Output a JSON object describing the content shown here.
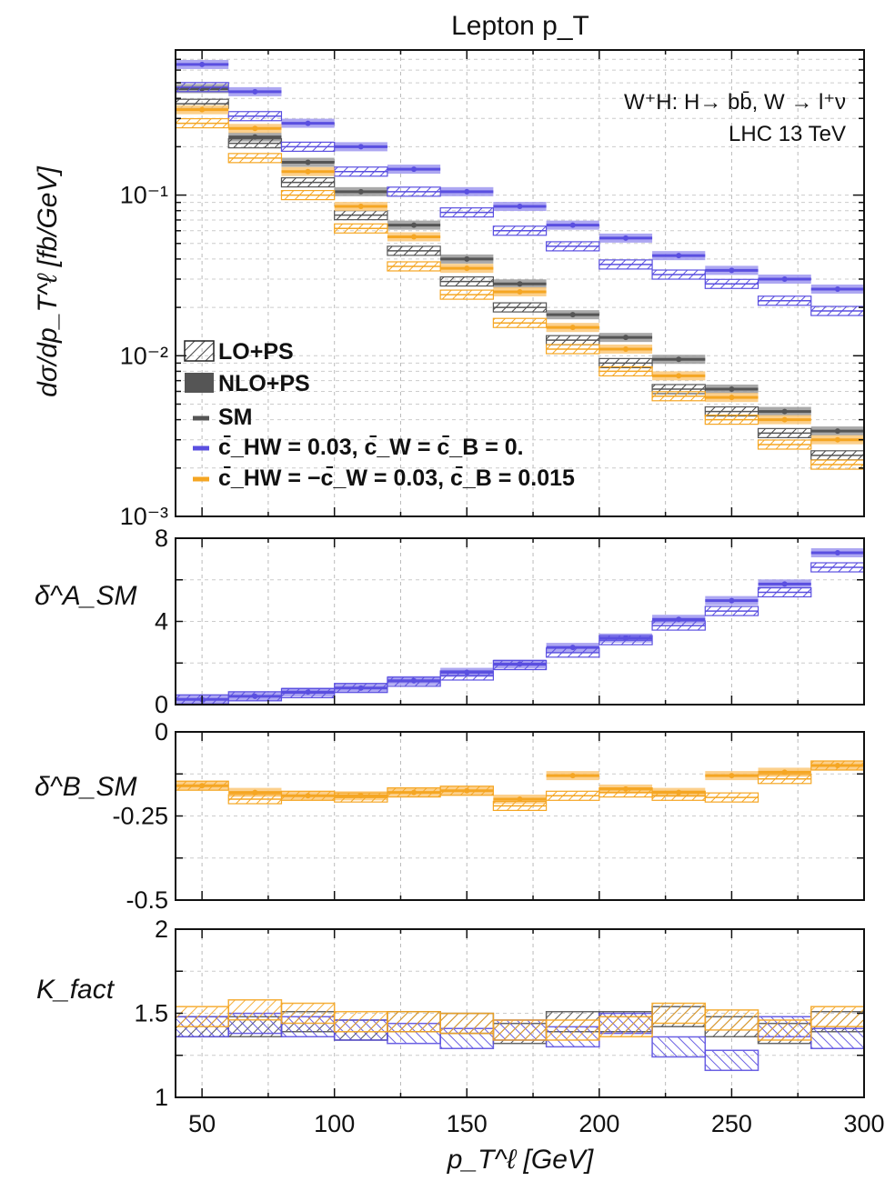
{
  "chart_data": {
    "type": "step-histogram",
    "title": "Lepton p_T",
    "xlabel": "p_T^ℓ [GeV]",
    "xlim": [
      40,
      300
    ],
    "x_ticks": [
      "50",
      "100",
      "150",
      "200",
      "250",
      "300"
    ],
    "bins": [
      [
        40,
        60
      ],
      [
        60,
        80
      ],
      [
        80,
        100
      ],
      [
        100,
        120
      ],
      [
        120,
        140
      ],
      [
        140,
        160
      ],
      [
        160,
        180
      ],
      [
        180,
        200
      ],
      [
        200,
        220
      ],
      [
        220,
        240
      ],
      [
        240,
        260
      ],
      [
        260,
        280
      ],
      [
        280,
        300
      ]
    ],
    "annotations": {
      "process": "W⁺H: H→ bb̄, W → l⁺ν",
      "collider": "LHC 13 TeV"
    },
    "colors": {
      "SM": "#555555",
      "A": "#5a4fe0",
      "B": "#f5a623"
    },
    "legend": {
      "placement": "lower-left of top panel",
      "items": [
        {
          "label": "LO+PS",
          "style": "hatched"
        },
        {
          "label": "NLO+PS",
          "style": "filled"
        },
        {
          "label": "SM",
          "color": "#555555"
        },
        {
          "label": "c̄_HW = 0.03, c̄_W = c̄_B = 0.",
          "color": "#5a4fe0"
        },
        {
          "label": "c̄_HW = −c̄_W = 0.03, c̄_B = 0.015",
          "color": "#f5a623"
        }
      ]
    },
    "panels": [
      {
        "id": "main",
        "ylabel": "dσ/dp_T^ℓ [fb/GeV]",
        "yscale": "log",
        "ylim": [
          0.001,
          0.8
        ],
        "y_ticks": [
          {
            "v": 0.1,
            "label": "10⁻¹"
          },
          {
            "v": 0.01,
            "label": "10⁻²"
          },
          {
            "v": 0.001,
            "label": "10⁻³"
          }
        ],
        "series": [
          {
            "name": "SM",
            "order": "NLO",
            "color": "#555555",
            "values": [
              0.46,
              0.23,
              0.16,
              0.105,
              0.065,
              0.04,
              0.028,
              0.018,
              0.013,
              0.0095,
              0.0062,
              0.0045,
              0.0034
            ]
          },
          {
            "name": "SM",
            "order": "LO",
            "color": "#555555",
            "values": [
              0.37,
              0.21,
              0.12,
              0.075,
              0.045,
              0.029,
              0.02,
              0.0125,
              0.009,
              0.0062,
              0.0045,
              0.0033,
              0.0024
            ]
          },
          {
            "name": "c̄_HW = 0.03, c̄_W = c̄_B = 0.",
            "order": "NLO",
            "color": "#5a4fe0",
            "values": [
              0.65,
              0.44,
              0.28,
              0.2,
              0.145,
              0.105,
              0.085,
              0.065,
              0.054,
              0.042,
              0.034,
              0.03,
              0.026
            ]
          },
          {
            "name": "c̄_HW = 0.03, c̄_W = c̄_B = 0.",
            "order": "LO",
            "color": "#5a4fe0",
            "values": [
              0.47,
              0.31,
              0.2,
              0.14,
              0.105,
              0.078,
              0.06,
              0.048,
              0.037,
              0.032,
              0.028,
              0.022,
              0.019
            ]
          },
          {
            "name": "c̄_HW = −c̄_W = 0.03, c̄_B = 0.015",
            "order": "NLO",
            "color": "#f5a623",
            "values": [
              0.34,
              0.26,
              0.14,
              0.085,
              0.055,
              0.035,
              0.025,
              0.015,
              0.011,
              0.0075,
              0.0055,
              0.004,
              0.003
            ]
          },
          {
            "name": "c̄_HW = −c̄_W = 0.03, c̄_B = 0.015",
            "order": "LO",
            "color": "#f5a623",
            "values": [
              0.28,
              0.17,
              0.1,
              0.062,
              0.036,
              0.024,
              0.016,
              0.011,
              0.008,
              0.0056,
              0.004,
              0.0028,
              0.0021
            ]
          }
        ]
      },
      {
        "id": "deltaA",
        "ylabel": "δ^A_SM",
        "ylim": [
          0,
          8
        ],
        "y_ticks": [
          {
            "v": 0,
            "label": "0"
          },
          {
            "v": 4,
            "label": "4"
          },
          {
            "v": 8,
            "label": "8"
          }
        ],
        "series": [
          {
            "order": "NLO",
            "color": "#5a4fe0",
            "values": [
              0.25,
              0.4,
              0.6,
              0.8,
              1.15,
              1.55,
              1.95,
              2.75,
              3.2,
              4.1,
              5.0,
              5.8,
              7.3
            ]
          },
          {
            "order": "LO",
            "color": "#5a4fe0",
            "values": [
              0.25,
              0.4,
              0.55,
              0.8,
              1.1,
              1.4,
              1.9,
              2.5,
              3.1,
              3.8,
              4.5,
              5.4,
              6.6
            ]
          }
        ]
      },
      {
        "id": "deltaB",
        "ylabel": "δ^B_SM",
        "ylim": [
          -0.5,
          0
        ],
        "y_ticks": [
          {
            "v": 0,
            "label": "0"
          },
          {
            "v": -0.25,
            "label": "-0.25"
          },
          {
            "v": -0.5,
            "label": "-0.5"
          }
        ],
        "series": [
          {
            "order": "NLO",
            "color": "#f5a623",
            "values": [
              -0.16,
              -0.18,
              -0.19,
              -0.19,
              -0.18,
              -0.175,
              -0.2,
              -0.13,
              -0.17,
              -0.18,
              -0.13,
              -0.12,
              -0.1
            ]
          },
          {
            "order": "LO",
            "color": "#f5a623",
            "values": [
              -0.16,
              -0.2,
              -0.19,
              -0.195,
              -0.18,
              -0.175,
              -0.22,
              -0.19,
              -0.18,
              -0.19,
              -0.195,
              -0.14,
              -0.1
            ]
          }
        ]
      },
      {
        "id": "kfact",
        "ylabel": "K_fact",
        "ylim": [
          1,
          2
        ],
        "y_ticks": [
          {
            "v": 1,
            "label": "1"
          },
          {
            "v": 1.5,
            "label": "1.5"
          },
          {
            "v": 2,
            "label": "2"
          }
        ],
        "series": [
          {
            "name": "SM",
            "color": "#555555",
            "values": [
              1.42,
              1.42,
              1.45,
              1.4,
              1.45,
              1.44,
              1.38,
              1.45,
              1.45,
              1.48,
              1.42,
              1.38,
              1.45
            ]
          },
          {
            "name": "A",
            "color": "#5a4fe0",
            "values": [
              1.42,
              1.44,
              1.42,
              1.4,
              1.38,
              1.35,
              1.4,
              1.36,
              1.44,
              1.3,
              1.22,
              1.42,
              1.35
            ]
          },
          {
            "name": "B",
            "color": "#f5a623",
            "values": [
              1.48,
              1.52,
              1.5,
              1.45,
              1.45,
              1.44,
              1.4,
              1.4,
              1.42,
              1.5,
              1.46,
              1.4,
              1.48
            ]
          }
        ]
      }
    ]
  }
}
